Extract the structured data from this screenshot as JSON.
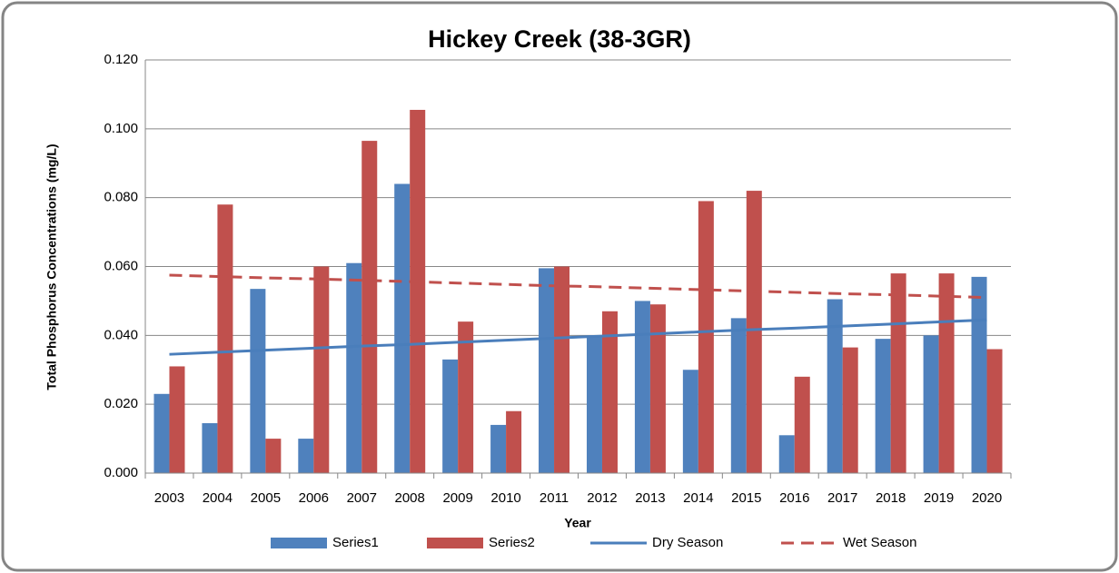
{
  "chart_data": {
    "type": "bar",
    "title": "Hickey Creek (38-3GR)",
    "x_label": "Year",
    "y_label": "Total Phosphorus Concentrations (mg/L)",
    "categories": [
      "2003",
      "2004",
      "2005",
      "2006",
      "2007",
      "2008",
      "2009",
      "2010",
      "2011",
      "2012",
      "2013",
      "2014",
      "2015",
      "2016",
      "2017",
      "2018",
      "2019",
      "2020"
    ],
    "series": [
      {
        "name": "Series1",
        "type": "bar",
        "color": "#4f81bd",
        "values": [
          0.023,
          0.0145,
          0.0535,
          0.01,
          0.061,
          0.084,
          0.033,
          0.014,
          0.0595,
          0.04,
          0.05,
          0.03,
          0.045,
          0.011,
          0.0505,
          0.039,
          0.04,
          0.057
        ]
      },
      {
        "name": "Series2",
        "type": "bar",
        "color": "#c0504d",
        "values": [
          0.031,
          0.078,
          0.01,
          0.06,
          0.0965,
          0.1055,
          0.044,
          0.018,
          0.06,
          0.047,
          0.049,
          0.079,
          0.082,
          0.028,
          0.0365,
          0.058,
          0.058,
          0.036
        ]
      },
      {
        "name": "Dry Season",
        "type": "line",
        "color": "#4a7ebb",
        "dashed": false,
        "values": [
          0.0345,
          0.0351,
          0.0357,
          0.0363,
          0.0369,
          0.0374,
          0.038,
          0.0386,
          0.0392,
          0.0398,
          0.0404,
          0.041,
          0.0416,
          0.0421,
          0.0427,
          0.0433,
          0.0439,
          0.0445
        ]
      },
      {
        "name": "Wet Season",
        "type": "line",
        "color": "#c0504d",
        "dashed": true,
        "values": [
          0.0575,
          0.0571,
          0.0567,
          0.0564,
          0.056,
          0.0556,
          0.0552,
          0.0548,
          0.0544,
          0.0541,
          0.0537,
          0.0533,
          0.0529,
          0.0525,
          0.0521,
          0.0518,
          0.0514,
          0.051
        ]
      }
    ],
    "ylim": [
      0,
      0.12
    ],
    "yticks": [
      {
        "value": 0,
        "label": "0.000"
      },
      {
        "value": 0.02,
        "label": "0.020"
      },
      {
        "value": 0.04,
        "label": "0.040"
      },
      {
        "value": 0.06,
        "label": "0.060"
      },
      {
        "value": 0.08,
        "label": "0.080"
      },
      {
        "value": 0.1,
        "label": "0.100"
      },
      {
        "value": 0.12,
        "label": "0.120"
      }
    ],
    "grid": true,
    "legend": "bottom"
  }
}
